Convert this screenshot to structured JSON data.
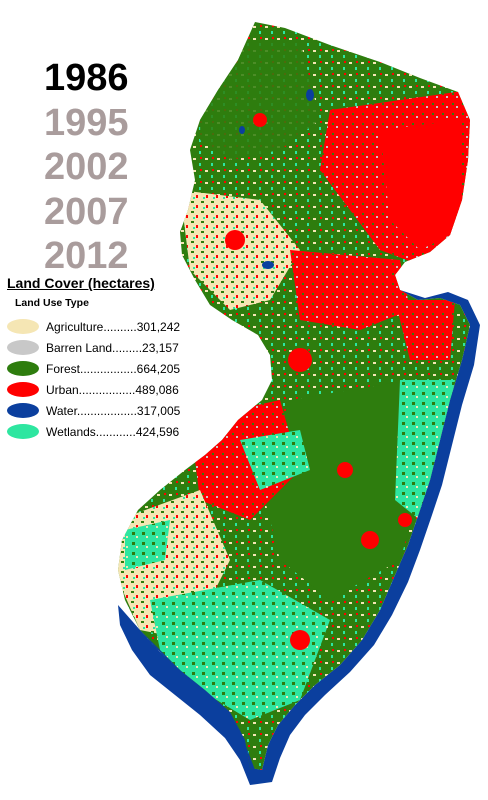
{
  "years": [
    {
      "label": "1986",
      "active": true
    },
    {
      "label": "1995",
      "active": false
    },
    {
      "label": "2002",
      "active": false
    },
    {
      "label": "2007",
      "active": false
    },
    {
      "label": "2012",
      "active": false
    }
  ],
  "legend": {
    "title": "Land Cover (hectares)",
    "subtitle": "Land Use Type",
    "items": [
      {
        "text": "Agriculture..........301,242",
        "color": "#f5e6b4"
      },
      {
        "text": "Barren Land.........23,157",
        "color": "#c8c8c8"
      },
      {
        "text": "Forest.................664,205",
        "color": "#2e7d0e"
      },
      {
        "text": "Urban.................489,086",
        "color": "#ff0000"
      },
      {
        "text": "Water..................317,005",
        "color": "#0b3f9e"
      },
      {
        "text": "Wetlands............424,596",
        "color": "#2ee6a0"
      }
    ]
  },
  "colors": {
    "agriculture": "#f5e6b4",
    "barren": "#c8c8c8",
    "forest": "#2e7d0e",
    "urban": "#ff0000",
    "water": "#0b3f9e",
    "wetlands": "#2ee6a0"
  }
}
